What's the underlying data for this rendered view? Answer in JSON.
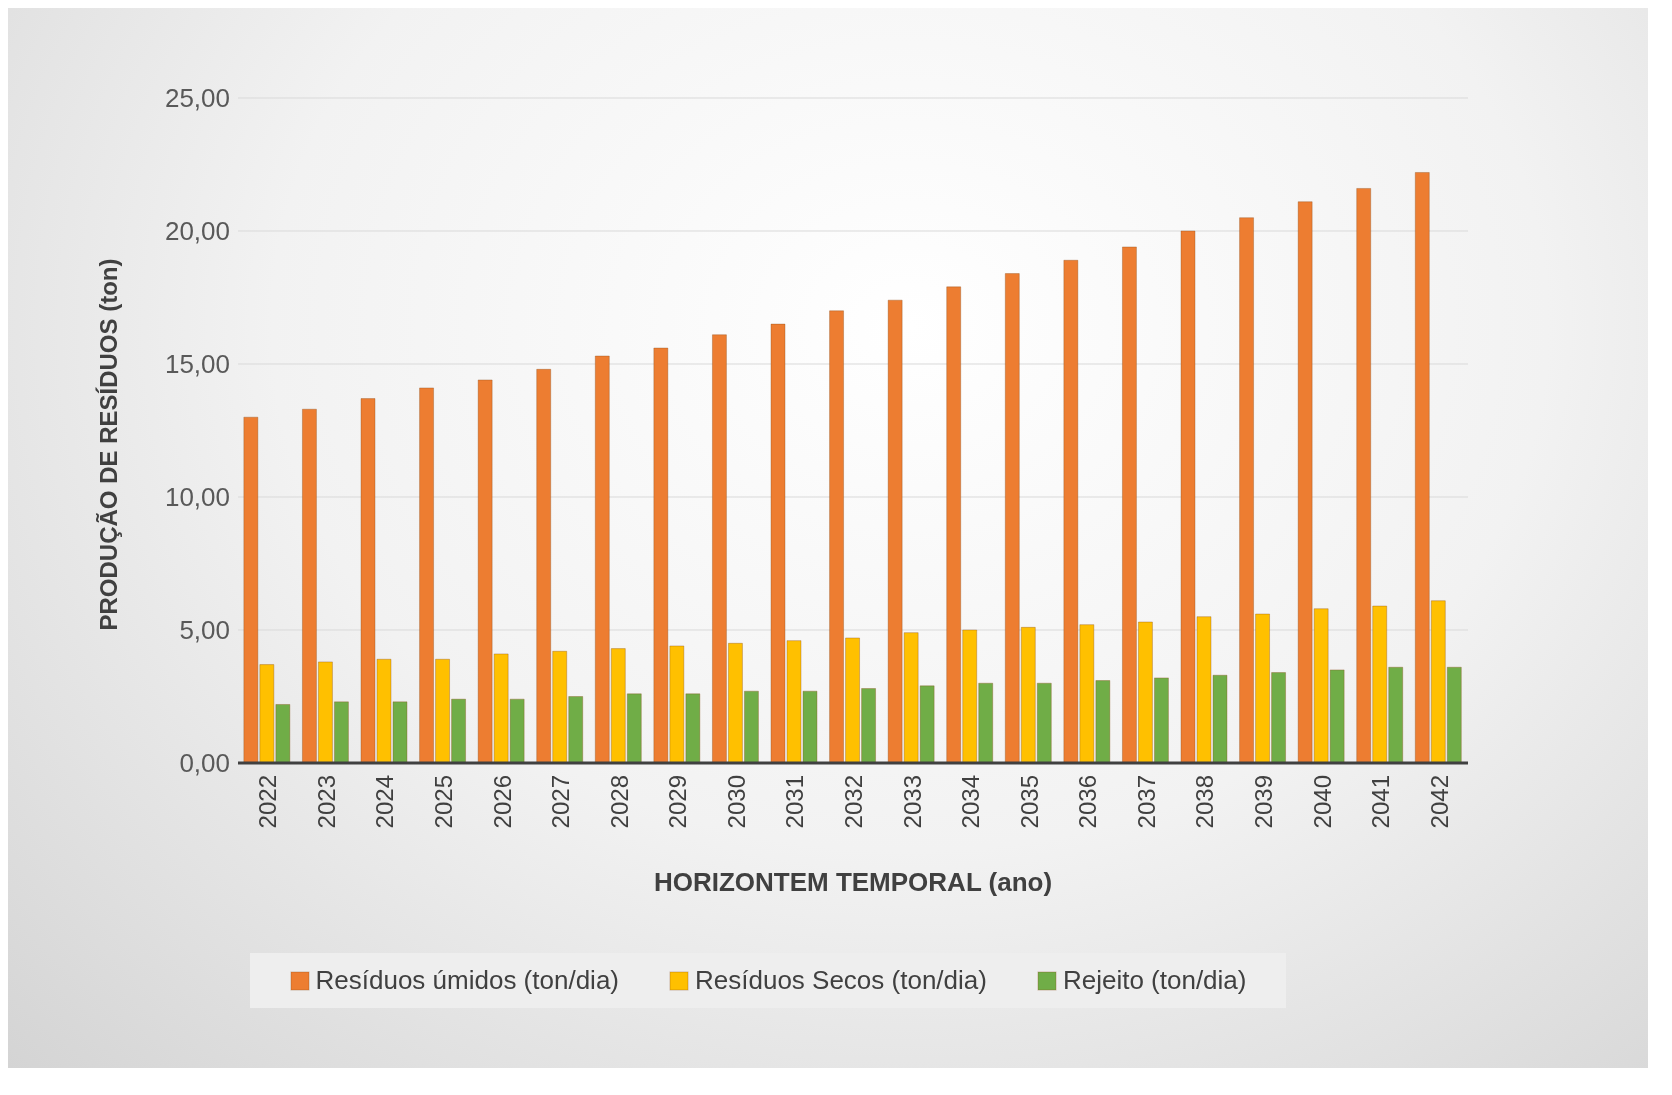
{
  "chart_data": {
    "type": "bar",
    "xlabel": "HORIZONTEM TEMPORAL (ano)",
    "ylabel": "PRODUÇÃO DE RESÍDUOS (ton)",
    "categories": [
      "2022",
      "2023",
      "2024",
      "2025",
      "2026",
      "2027",
      "2028",
      "2029",
      "2030",
      "2031",
      "2032",
      "2033",
      "2034",
      "2035",
      "2036",
      "2037",
      "2038",
      "2039",
      "2040",
      "2041",
      "2042"
    ],
    "series": [
      {
        "name": "Resíduos úmidos (ton/dia)",
        "color": "#ed7d31",
        "values": [
          13.0,
          13.3,
          13.7,
          14.1,
          14.4,
          14.8,
          15.3,
          15.6,
          16.1,
          16.5,
          17.0,
          17.4,
          17.9,
          18.4,
          18.9,
          19.4,
          20.0,
          20.5,
          21.1,
          21.6,
          22.2
        ]
      },
      {
        "name": "Resíduos Secos (ton/dia)",
        "color": "#ffc000",
        "values": [
          3.7,
          3.8,
          3.9,
          3.9,
          4.1,
          4.2,
          4.3,
          4.4,
          4.5,
          4.6,
          4.7,
          4.9,
          5.0,
          5.1,
          5.2,
          5.3,
          5.5,
          5.6,
          5.8,
          5.9,
          6.1
        ]
      },
      {
        "name": "Rejeito (ton/dia)",
        "color": "#70ad47",
        "values": [
          2.2,
          2.3,
          2.3,
          2.4,
          2.4,
          2.5,
          2.6,
          2.6,
          2.7,
          2.7,
          2.8,
          2.9,
          3.0,
          3.0,
          3.1,
          3.2,
          3.3,
          3.4,
          3.5,
          3.6,
          3.6
        ]
      }
    ],
    "ylim": [
      0,
      25
    ],
    "yticks": [
      {
        "value": 0,
        "label": "0,00"
      },
      {
        "value": 5,
        "label": "5,00"
      },
      {
        "value": 10,
        "label": "10,00"
      },
      {
        "value": 15,
        "label": "15,00"
      },
      {
        "value": 20,
        "label": "20,00"
      },
      {
        "value": 25,
        "label": "25,00"
      }
    ],
    "grid": "y",
    "legend": "bottom"
  }
}
